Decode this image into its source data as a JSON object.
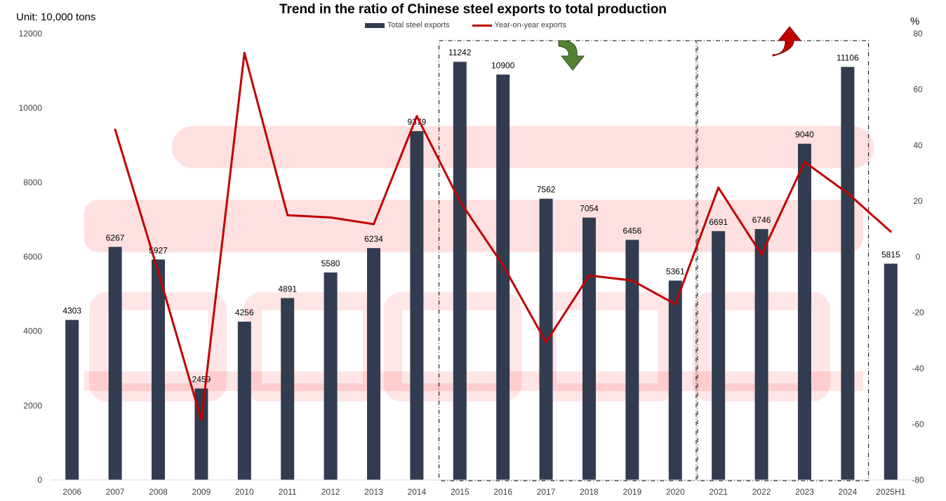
{
  "header": {
    "title": "Trend in the ratio of Chinese steel exports to total production",
    "unit_left": "Unit: 10,000 tons",
    "unit_right": "%"
  },
  "chart_data": {
    "type": "bar",
    "categories": [
      "2006",
      "2007",
      "2008",
      "2009",
      "2010",
      "2011",
      "2012",
      "2013",
      "2014",
      "2015",
      "2016",
      "2017",
      "2018",
      "2019",
      "2020",
      "2021",
      "2022",
      "2023",
      "2024",
      "2025H1"
    ],
    "series": [
      {
        "name": "Total steel exports",
        "type": "bar",
        "axis": "left",
        "color": "#323C50",
        "values": [
          4303,
          6267,
          5927,
          2459,
          4256,
          4891,
          5580,
          6234,
          9379,
          11242,
          10900,
          7562,
          7054,
          6456,
          5361,
          6691,
          6746,
          9040,
          11106,
          5815
        ],
        "labels": [
          "4303",
          "6267",
          "5927",
          "2459",
          "4256",
          "4891",
          "5580",
          "6234",
          "9379",
          "11242",
          "10900",
          "7562",
          "7054",
          "6456",
          "5361",
          "6691",
          "6746",
          "9040",
          "11106",
          "5815"
        ]
      },
      {
        "name": "Year-on-year exports",
        "type": "line",
        "axis": "right",
        "color": "#C00000",
        "values": [
          null,
          45.6,
          -5.4,
          -58.5,
          73.1,
          14.9,
          14.1,
          11.7,
          50.4,
          19.9,
          -3.0,
          -30.6,
          -6.7,
          -8.5,
          -17.0,
          24.8,
          0.8,
          34.0,
          22.8,
          9.0
        ]
      }
    ],
    "y_left": {
      "min": 0,
      "max": 12000,
      "ticks": [
        "0",
        "2000",
        "4000",
        "6000",
        "8000",
        "10000",
        "12000"
      ]
    },
    "y_right": {
      "min": -80,
      "max": 80,
      "ticks": [
        "-80",
        "-60",
        "-40",
        "-20",
        "0",
        "20",
        "40",
        "60",
        "80"
      ]
    },
    "legend_position": "top-center",
    "highlight_boxes": [
      {
        "from": "2015",
        "to": "2020",
        "arrow": "down",
        "arrow_color": "#548235"
      },
      {
        "from": "2021",
        "to": "2024",
        "arrow": "up",
        "arrow_color": "#C00000"
      }
    ],
    "watermark_color": "#FF0000"
  }
}
